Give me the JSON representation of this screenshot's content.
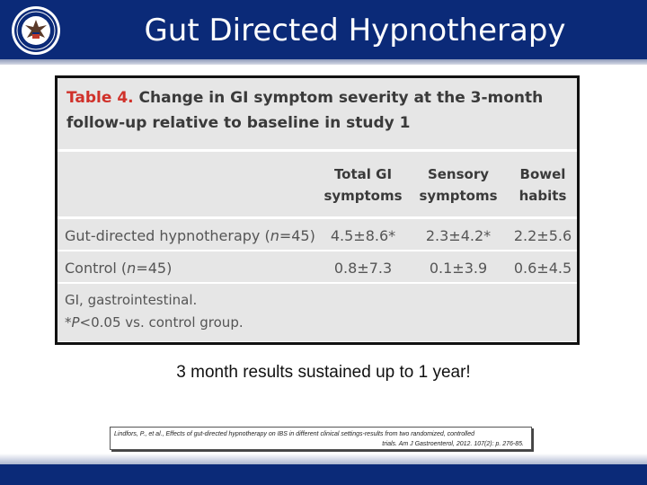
{
  "slide": {
    "title": "Gut Directed Hypnotherapy",
    "tagline": "3 month results sustained up to 1 year!",
    "citation_line1": "Lindfors, P., et al., Effects of gut-directed hypnotherapy on IBS in different clinical settings-results from two randomized, controlled",
    "citation_line2": "trials. Am J Gastroenterol, 2012. 107(2): p. 276-85."
  },
  "table": {
    "title_num": "Table 4.",
    "title_text": " Change in GI symptom severity at the 3-month follow-up relative to baseline in study 1",
    "col1_l1": "Total GI",
    "col1_l2": "symptoms",
    "col2_l1": "Sensory",
    "col2_l2": "symptoms",
    "col3_l1": "Bowel",
    "col3_l2": "habits",
    "rows": [
      {
        "label_pre": "Gut-directed hypnotherapy (",
        "label_n": "n",
        "label_post": "=45)",
        "v1": "4.5±8.6*",
        "v2": "2.3±4.2*",
        "v3": "2.2±5.6"
      },
      {
        "label_pre": "Control (",
        "label_n": "n",
        "label_post": "=45)",
        "v1": "0.8±7.3",
        "v2": "0.1±3.9",
        "v3": "0.6±4.5"
      }
    ],
    "note1": "GI, gastrointestinal.",
    "note2_pre": "*",
    "note2_p": "P",
    "note2_post": "<0.05 vs. control group."
  },
  "colors": {
    "header": "#0b2a78",
    "table_bg": "#e6e6e6",
    "table_num": "#d0312a"
  },
  "icons": {
    "seal": "va-seal-icon"
  }
}
